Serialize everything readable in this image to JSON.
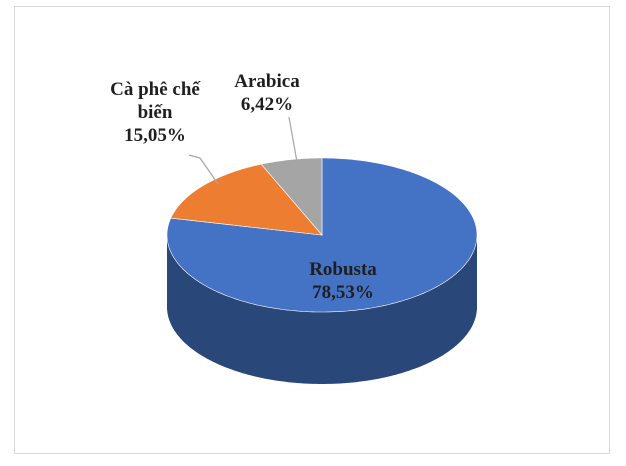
{
  "chart_data": {
    "type": "pie",
    "categories": [
      "Robusta",
      "Cà phê chế biến",
      "Arabica"
    ],
    "values": [
      78.53,
      15.05,
      6.42
    ],
    "value_labels": [
      "78,53%",
      "15,05%",
      "6,42%"
    ],
    "colors": [
      "#4472c4",
      "#ed7d31",
      "#a5a5a5"
    ]
  }
}
